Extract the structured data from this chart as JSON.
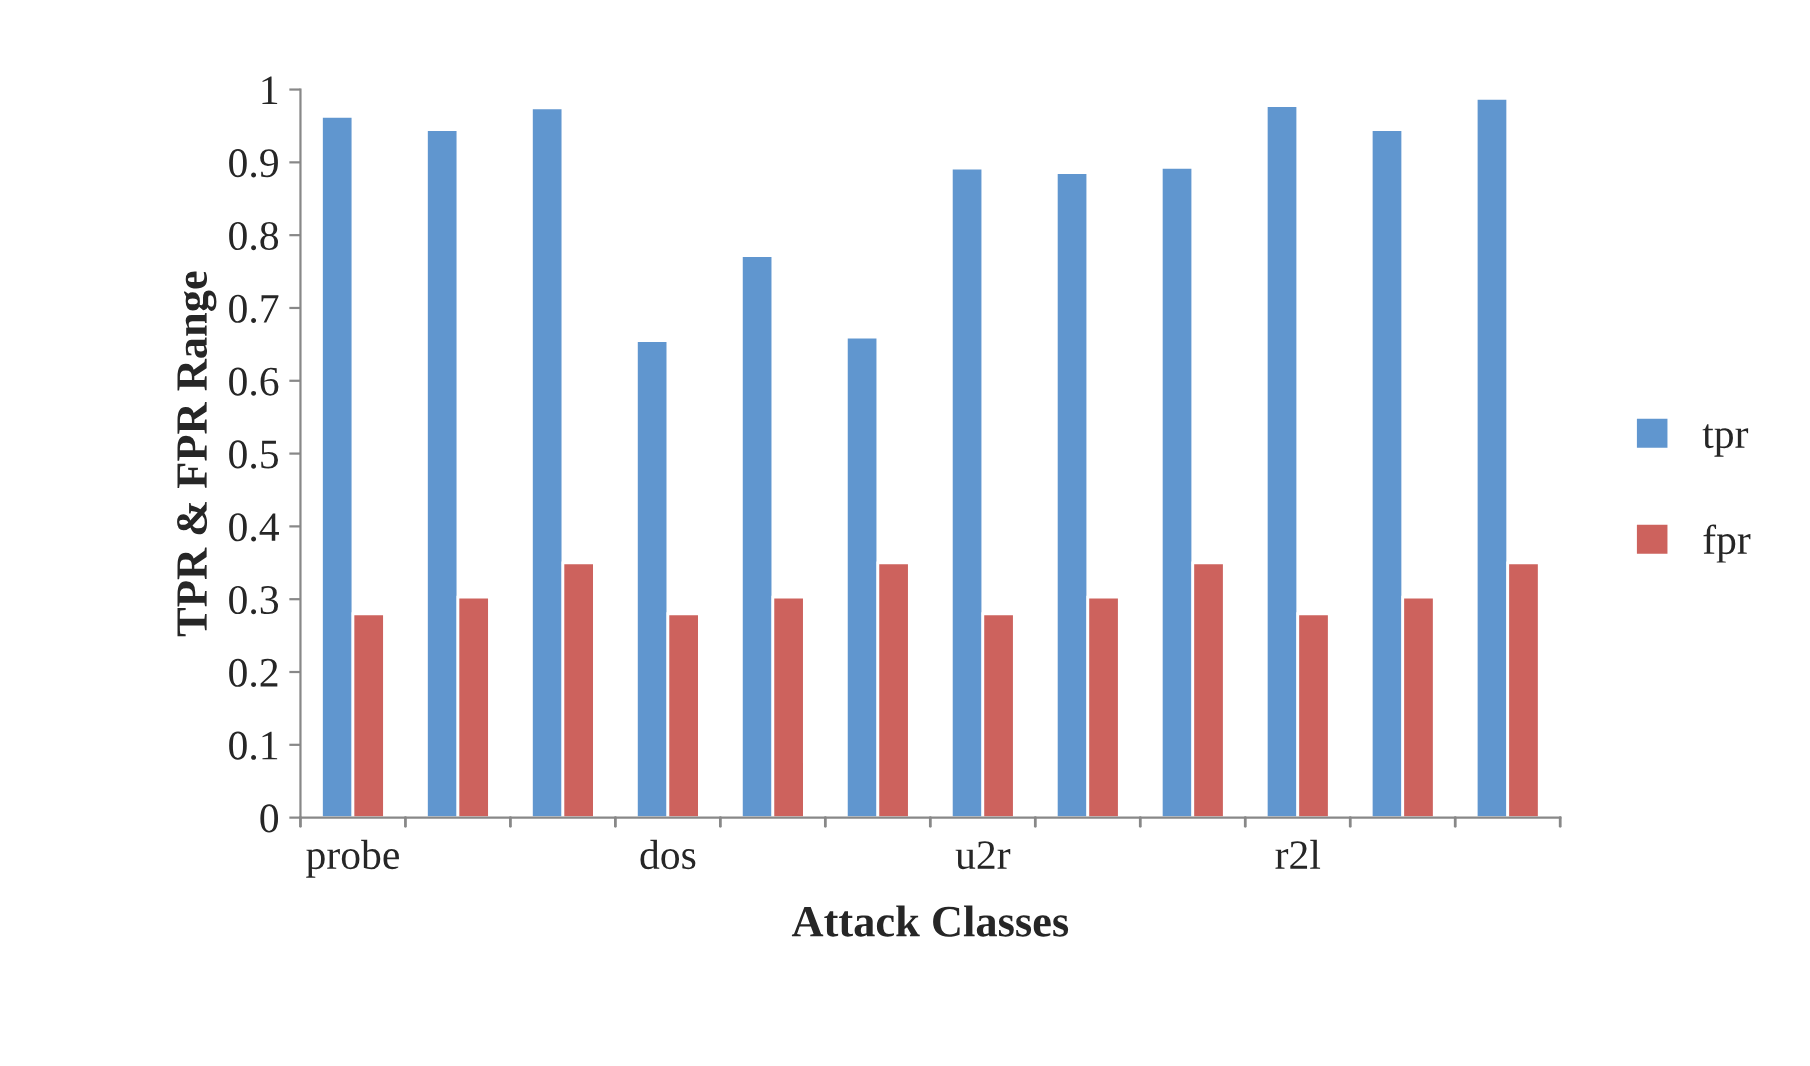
{
  "chart_data": {
    "type": "bar",
    "xlabel": "Attack Classes",
    "ylabel": "TPR & FPR Range",
    "categories": [
      "probe",
      null,
      null,
      "dos",
      null,
      null,
      "u2r",
      null,
      null,
      "r2l",
      null,
      null
    ],
    "series": [
      {
        "name": "tpr",
        "color": "#6096cf",
        "values": [
          0.963,
          0.945,
          0.975,
          0.655,
          0.772,
          0.66,
          0.892,
          0.886,
          0.893,
          0.978,
          0.945,
          0.988
        ]
      },
      {
        "name": "fpr",
        "color": "#cd625d",
        "values": [
          0.28,
          0.303,
          0.35,
          0.28,
          0.303,
          0.35,
          0.28,
          0.303,
          0.35,
          0.28,
          0.303,
          0.35
        ]
      }
    ],
    "ylim": [
      0,
      1
    ],
    "yticks": [
      0,
      0.1,
      0.2,
      0.3,
      0.4,
      0.5,
      0.6,
      0.7,
      0.8,
      0.9,
      1
    ],
    "grid": false,
    "legend": "right"
  }
}
